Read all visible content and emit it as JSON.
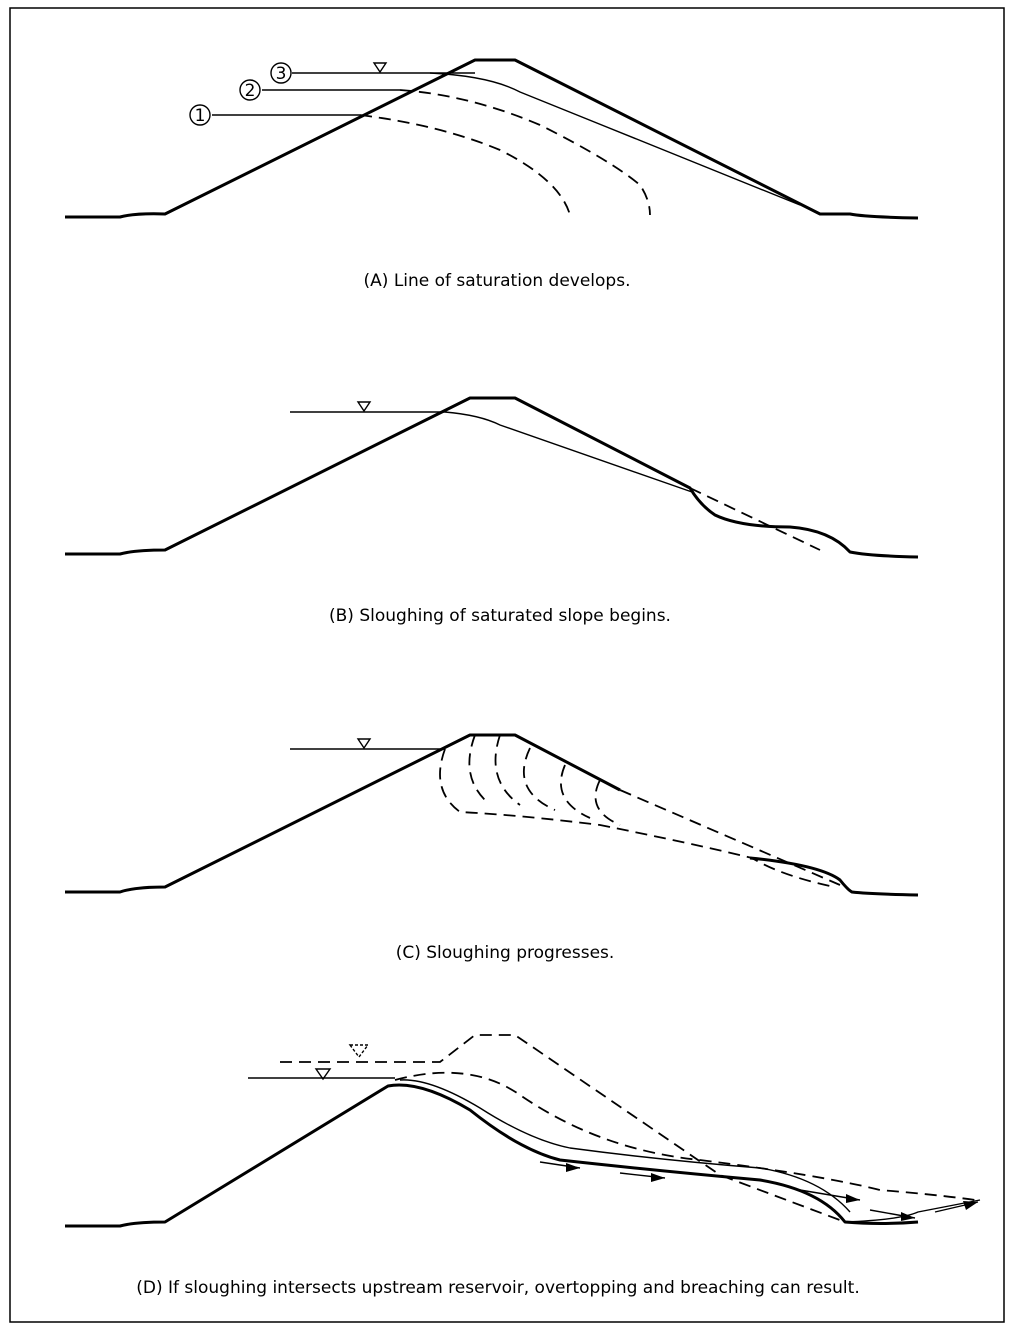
{
  "panels": [
    {
      "caption": "(A) Line of saturation develops.",
      "markers": [
        "1",
        "2",
        "3"
      ]
    },
    {
      "caption": "(B) Sloughing of saturated slope begins."
    },
    {
      "caption": "(C) Sloughing progresses."
    },
    {
      "caption": "(D) If sloughing intersects upstream reservoir, overtopping and breaching can result."
    }
  ]
}
